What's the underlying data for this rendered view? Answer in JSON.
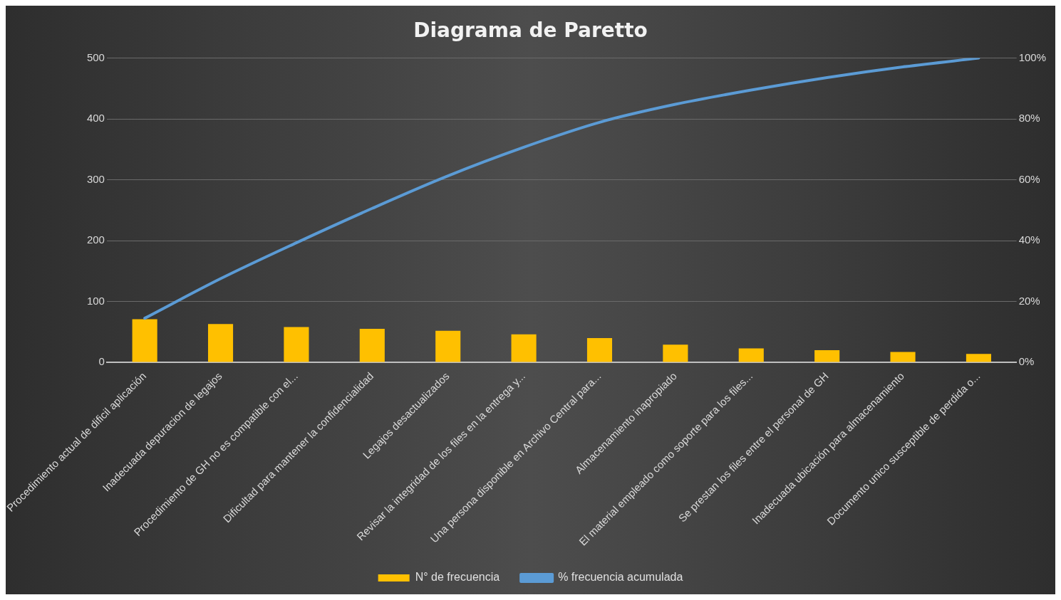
{
  "chart_data": {
    "type": "bar",
    "title": "Diagrama de Paretto",
    "categories": [
      "Procedimiento actual de dificil aplicación",
      "Inadecuada depuracion de legajos",
      "Procedimiento de GH no es compatible con el...",
      "Dificultad para mantener la confidencialidad",
      "Legajos desactualizados",
      "Revisar la integridad de los files en la entrega y...",
      "Una persona disponible en Archivo Central para...",
      "Almacenamiento inapropiado",
      "El material empleado como soporte para los files...",
      "Se prestan los files entre el personal de GH",
      "Inadecuada ubicación para almacenamiento",
      "Documento unico susceptible de perdida o..."
    ],
    "series": [
      {
        "name": "N° de frecuencia",
        "color": "#ffc000",
        "values": [
          71,
          63,
          58,
          55,
          52,
          46,
          40,
          29,
          23,
          20,
          17,
          14
        ]
      },
      {
        "name": "% frecuencia acumulada",
        "type": "line",
        "axis": "y2",
        "color": "#5b9bd5",
        "values": [
          14.5,
          27.5,
          39.3,
          50.6,
          61.3,
          70.7,
          78.9,
          84.8,
          89.5,
          93.6,
          97.1,
          100
        ]
      }
    ],
    "ylim": [
      0,
      500
    ],
    "yticks": [
      0,
      100,
      200,
      300,
      400,
      500
    ],
    "y2lim": [
      0,
      100
    ],
    "y2ticks": [
      {
        "value": 0,
        "label": "0%"
      },
      {
        "value": 20,
        "label": "20%"
      },
      {
        "value": 40,
        "label": "40%"
      },
      {
        "value": 60,
        "label": "60%"
      },
      {
        "value": 80,
        "label": "80%"
      },
      {
        "value": 100,
        "label": "100%"
      }
    ],
    "grid": "y",
    "legend": "bottom",
    "marker": "none",
    "line_style": "solid"
  }
}
